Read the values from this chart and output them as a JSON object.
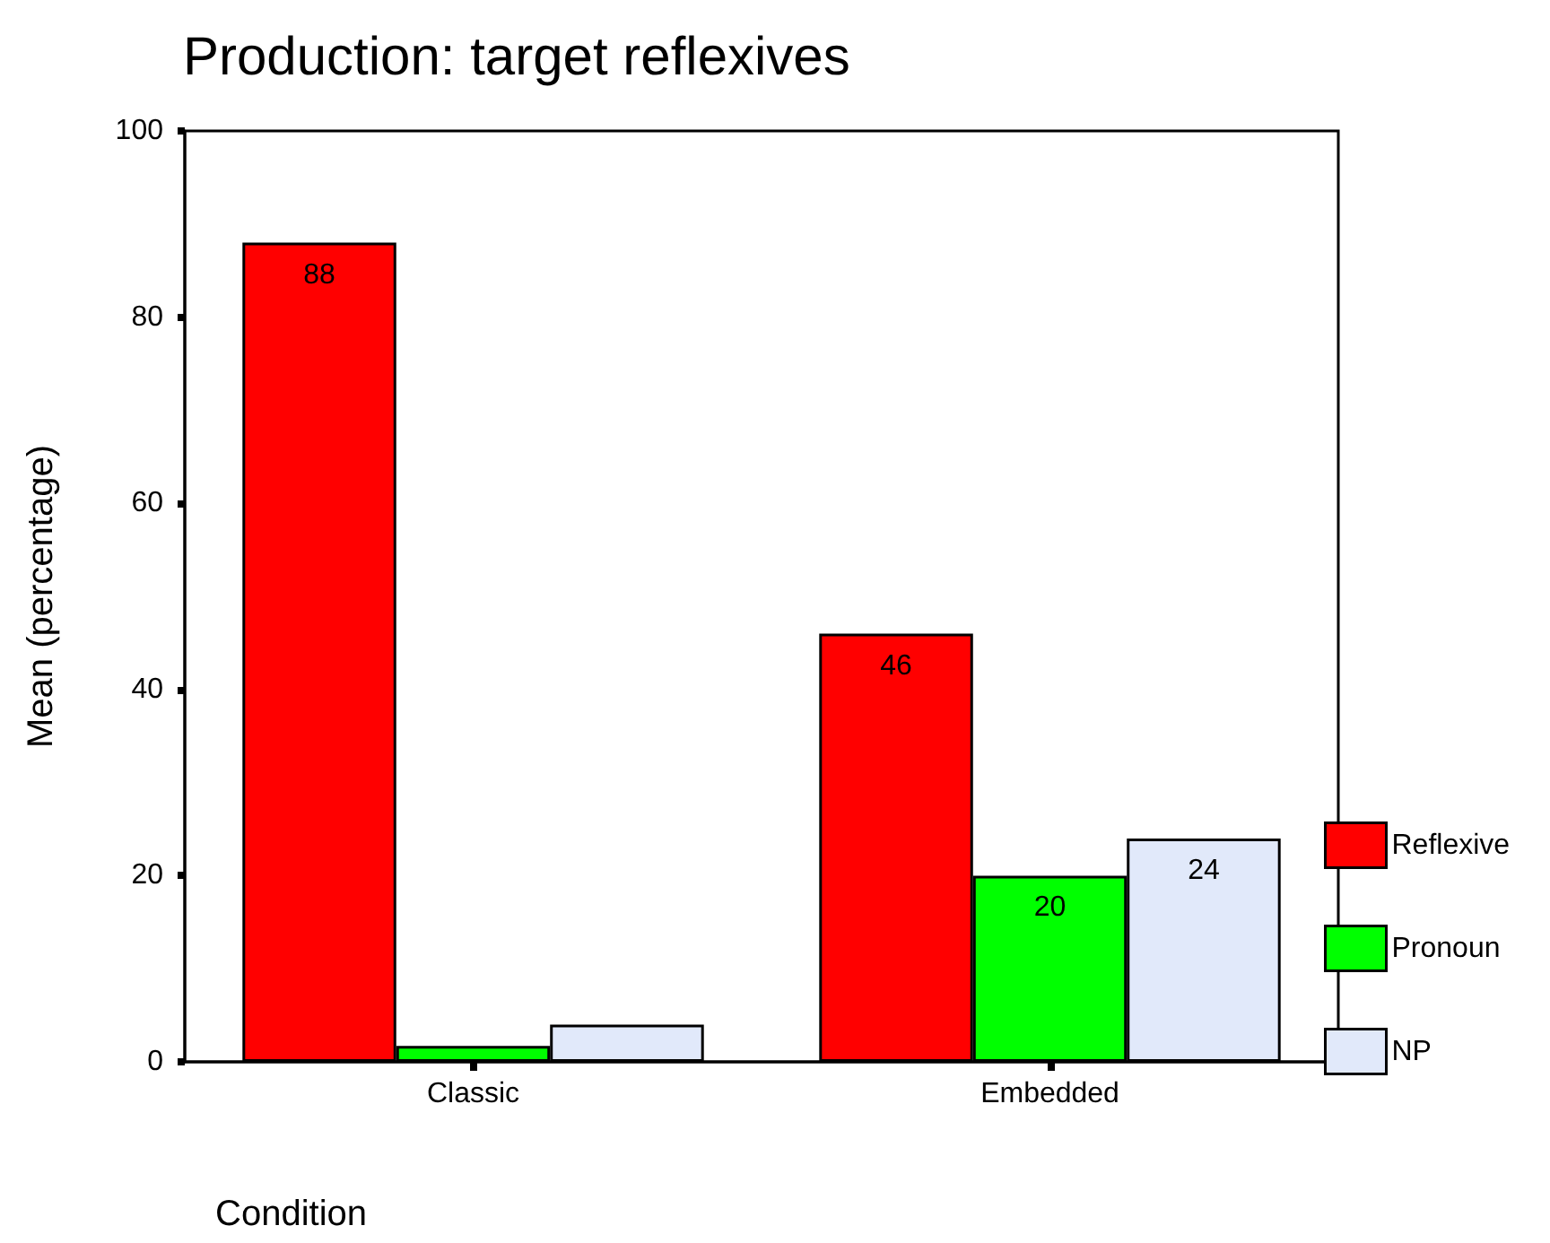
{
  "chart_data": {
    "type": "bar",
    "title": "Production: target reflexives",
    "xlabel": "Condition",
    "ylabel": "Mean (percentage)",
    "categories": [
      "Classic",
      "Embedded"
    ],
    "series": [
      {
        "name": "Reflexive",
        "color": "#ff0000",
        "values": [
          88,
          46
        ],
        "value_labels": [
          "88",
          "46"
        ]
      },
      {
        "name": "Pronoun",
        "color": "#00ff00",
        "values": [
          1.7,
          20
        ],
        "value_labels": [
          null,
          "20"
        ]
      },
      {
        "name": "NP",
        "color": "#e1e9fa",
        "values": [
          4,
          24
        ],
        "value_labels": [
          null,
          "24"
        ]
      }
    ],
    "ylim": [
      0,
      100
    ],
    "yticks": [
      0,
      20,
      40,
      60,
      80,
      100
    ],
    "grid": false,
    "legend": "right"
  }
}
